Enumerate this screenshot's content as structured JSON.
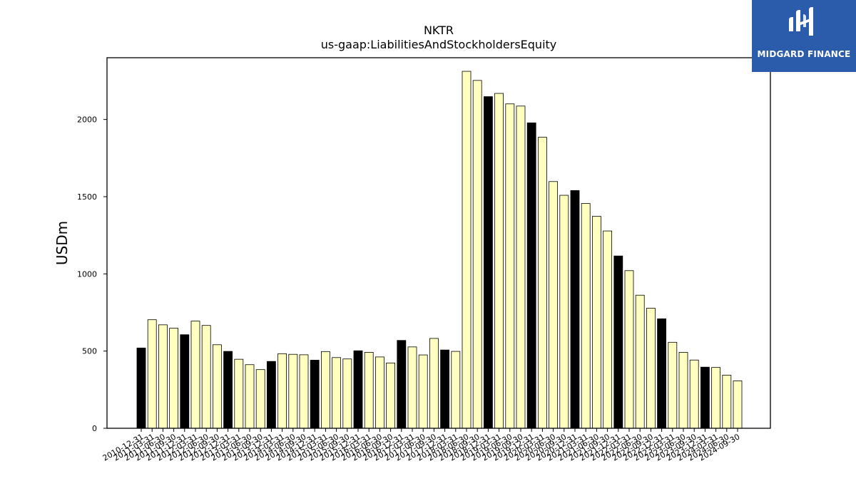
{
  "logo": {
    "text": "MIDGARD FINANCE"
  },
  "chart_data": {
    "type": "bar",
    "title": "NKTR",
    "subtitle": "us-gaap:LiabilitiesAndStockholdersEquity",
    "xlabel": "",
    "ylabel": "USDm",
    "ylim": [
      0,
      2400
    ],
    "yticks": [
      0,
      500,
      1000,
      1500,
      2000
    ],
    "grid": false,
    "colors": {
      "annual": "#000000",
      "quarterly": "#ffffc0",
      "edge": "#000000"
    },
    "categories": [
      "2010-12-31",
      "2011-03-31",
      "2011-06-30",
      "2011-09-30",
      "2011-12-31",
      "2012-03-31",
      "2012-06-30",
      "2012-09-30",
      "2012-12-31",
      "2013-03-31",
      "2013-06-30",
      "2013-09-30",
      "2013-12-31",
      "2014-03-31",
      "2014-06-30",
      "2014-09-30",
      "2014-12-31",
      "2015-03-31",
      "2015-06-30",
      "2015-09-30",
      "2015-12-31",
      "2016-03-31",
      "2016-06-30",
      "2016-09-30",
      "2016-12-31",
      "2017-03-31",
      "2017-06-30",
      "2017-09-30",
      "2017-12-31",
      "2018-03-31",
      "2018-06-30",
      "2018-09-30",
      "2018-12-31",
      "2019-03-31",
      "2019-06-30",
      "2019-09-30",
      "2019-12-31",
      "2020-03-31",
      "2020-06-30",
      "2020-09-30",
      "2020-12-31",
      "2021-03-31",
      "2021-06-30",
      "2021-09-30",
      "2021-12-31",
      "2022-03-31",
      "2022-06-30",
      "2022-09-30",
      "2022-12-31",
      "2023-03-31",
      "2023-06-30",
      "2023-09-30",
      "2023-12-31",
      "2024-03-31",
      "2024-06-30",
      "2024-09-30"
    ],
    "values": [
      520,
      703,
      670,
      648,
      606,
      694,
      666,
      541,
      498,
      447,
      412,
      380,
      433,
      483,
      479,
      476,
      441,
      497,
      458,
      449,
      502,
      492,
      462,
      423,
      569,
      527,
      475,
      582,
      507,
      498,
      2312,
      2253,
      2148,
      2169,
      2101,
      2087,
      1978,
      1885,
      1598,
      1509,
      1540,
      1456,
      1373,
      1278,
      1116,
      1021,
      862,
      778,
      709,
      557,
      492,
      442,
      396,
      394,
      344,
      307
    ],
    "annual_flags": [
      true,
      false,
      false,
      false,
      true,
      false,
      false,
      false,
      true,
      false,
      false,
      false,
      true,
      false,
      false,
      false,
      true,
      false,
      false,
      false,
      true,
      false,
      false,
      false,
      true,
      false,
      false,
      false,
      true,
      false,
      false,
      false,
      true,
      false,
      false,
      false,
      true,
      false,
      false,
      false,
      true,
      false,
      false,
      false,
      true,
      false,
      false,
      false,
      true,
      false,
      false,
      false,
      true,
      false,
      false,
      false
    ]
  }
}
